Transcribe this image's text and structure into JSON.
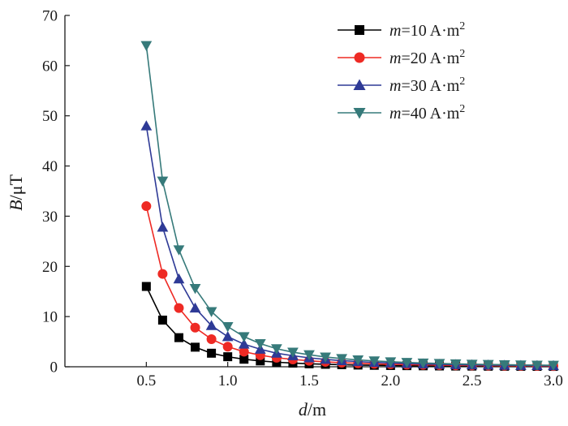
{
  "chart_data": {
    "type": "line",
    "xlabel": {
      "var": "d",
      "unit": "/m"
    },
    "ylabel": {
      "var": "B",
      "unit": "/μT"
    },
    "xlim": [
      0,
      3.0
    ],
    "ylim": [
      0,
      70
    ],
    "x_ticks": [
      0.5,
      1.0,
      1.5,
      2.0,
      2.5,
      3.0
    ],
    "x_tick_labels": [
      "0.5",
      "1.0",
      "1.5",
      "2.0",
      "2.5",
      "3.0"
    ],
    "y_ticks": [
      0,
      10,
      20,
      30,
      40,
      50,
      60,
      70
    ],
    "y_tick_labels": [
      "0",
      "10",
      "20",
      "30",
      "40",
      "50",
      "60",
      "70"
    ],
    "grid": false,
    "legend_position": "top-right",
    "x": [
      0.5,
      0.6,
      0.7,
      0.8,
      0.9,
      1.0,
      1.1,
      1.2,
      1.3,
      1.4,
      1.5,
      1.6,
      1.7,
      1.8,
      1.9,
      2.0,
      2.1,
      2.2,
      2.3,
      2.4,
      2.5,
      2.6,
      2.7,
      2.8,
      2.9,
      3.0
    ],
    "series": [
      {
        "legend": {
          "var": "m",
          "text": "=10 A·m",
          "sup": "2"
        },
        "marker": "square",
        "color": "#000000",
        "values": [
          16.0,
          9.3,
          5.8,
          3.9,
          2.7,
          2.0,
          1.5,
          1.16,
          0.91,
          0.73,
          0.59,
          0.49,
          0.41,
          0.34,
          0.29,
          0.25,
          0.22,
          0.19,
          0.16,
          0.14,
          0.13,
          0.11,
          0.1,
          0.09,
          0.08,
          0.07
        ]
      },
      {
        "legend": {
          "var": "m",
          "text": "=20 A·m",
          "sup": "2"
        },
        "marker": "circle",
        "color": "#ee2a24",
        "values": [
          32.0,
          18.5,
          11.7,
          7.8,
          5.5,
          4.0,
          3.0,
          2.3,
          1.8,
          1.46,
          1.19,
          0.98,
          0.81,
          0.69,
          0.58,
          0.5,
          0.43,
          0.38,
          0.33,
          0.29,
          0.26,
          0.23,
          0.2,
          0.18,
          0.16,
          0.15
        ]
      },
      {
        "legend": {
          "var": "m",
          "text": "=30 A·m",
          "sup": "2"
        },
        "marker": "triangle-up",
        "color": "#2e3a96",
        "values": [
          48.0,
          27.8,
          17.5,
          11.7,
          8.2,
          6.0,
          4.5,
          3.5,
          2.7,
          2.2,
          1.78,
          1.47,
          1.22,
          1.03,
          0.87,
          0.75,
          0.65,
          0.56,
          0.49,
          0.43,
          0.38,
          0.34,
          0.31,
          0.27,
          0.25,
          0.22
        ]
      },
      {
        "legend": {
          "var": "m",
          "text": "=40 A·m",
          "sup": "2"
        },
        "marker": "triangle-down",
        "color": "#367a7a",
        "values": [
          64.0,
          37.0,
          23.3,
          15.6,
          11.0,
          8.0,
          6.0,
          4.6,
          3.6,
          2.9,
          2.4,
          1.95,
          1.63,
          1.37,
          1.17,
          1.0,
          0.86,
          0.75,
          0.66,
          0.58,
          0.51,
          0.46,
          0.41,
          0.36,
          0.33,
          0.3
        ]
      }
    ]
  }
}
